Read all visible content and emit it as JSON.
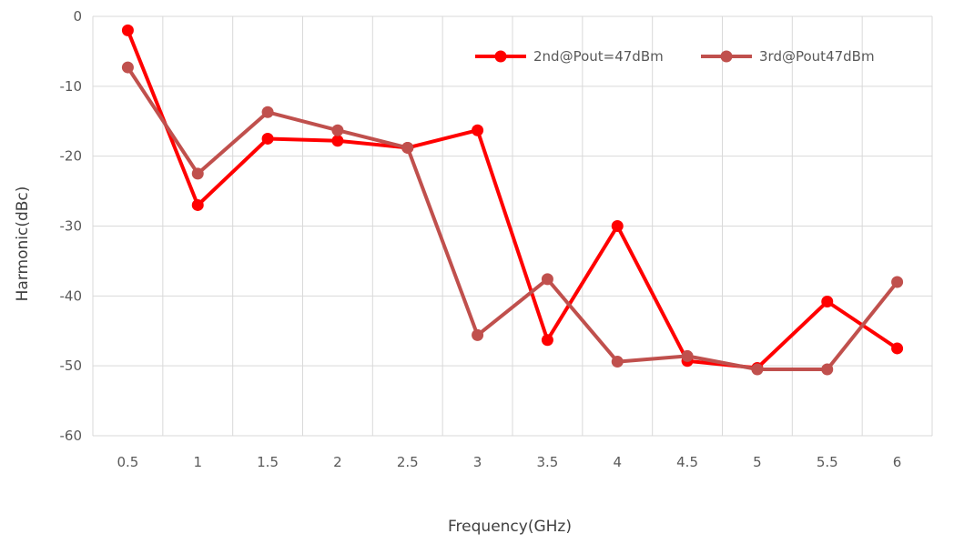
{
  "chart_data": {
    "type": "line",
    "title": "",
    "xlabel": "Frequency(GHz)",
    "ylabel": "Harmonic(dBc)",
    "categories": [
      "0.5",
      "1",
      "1.5",
      "2",
      "2.5",
      "3",
      "3.5",
      "4",
      "4.5",
      "5",
      "5.5",
      "6"
    ],
    "ylim": [
      -60,
      0
    ],
    "yticks": [
      0,
      -10,
      -20,
      -30,
      -40,
      -50,
      -60
    ],
    "grid": true,
    "legend_position": "top-right",
    "series": [
      {
        "name": "2nd@Pout=47dBm",
        "color": "#ff0000",
        "values": [
          -2,
          -27,
          -17.5,
          -17.8,
          -18.8,
          -16.3,
          -46.3,
          -30,
          -49.3,
          -50.3,
          -40.8,
          -47.5
        ]
      },
      {
        "name": "3rd@Pout47dBm",
        "color": "#c0504d",
        "values": [
          -7.3,
          -22.5,
          -13.7,
          -16.3,
          -18.8,
          -45.6,
          -37.6,
          -49.4,
          -48.6,
          -50.5,
          -50.5,
          -38
        ]
      }
    ]
  }
}
